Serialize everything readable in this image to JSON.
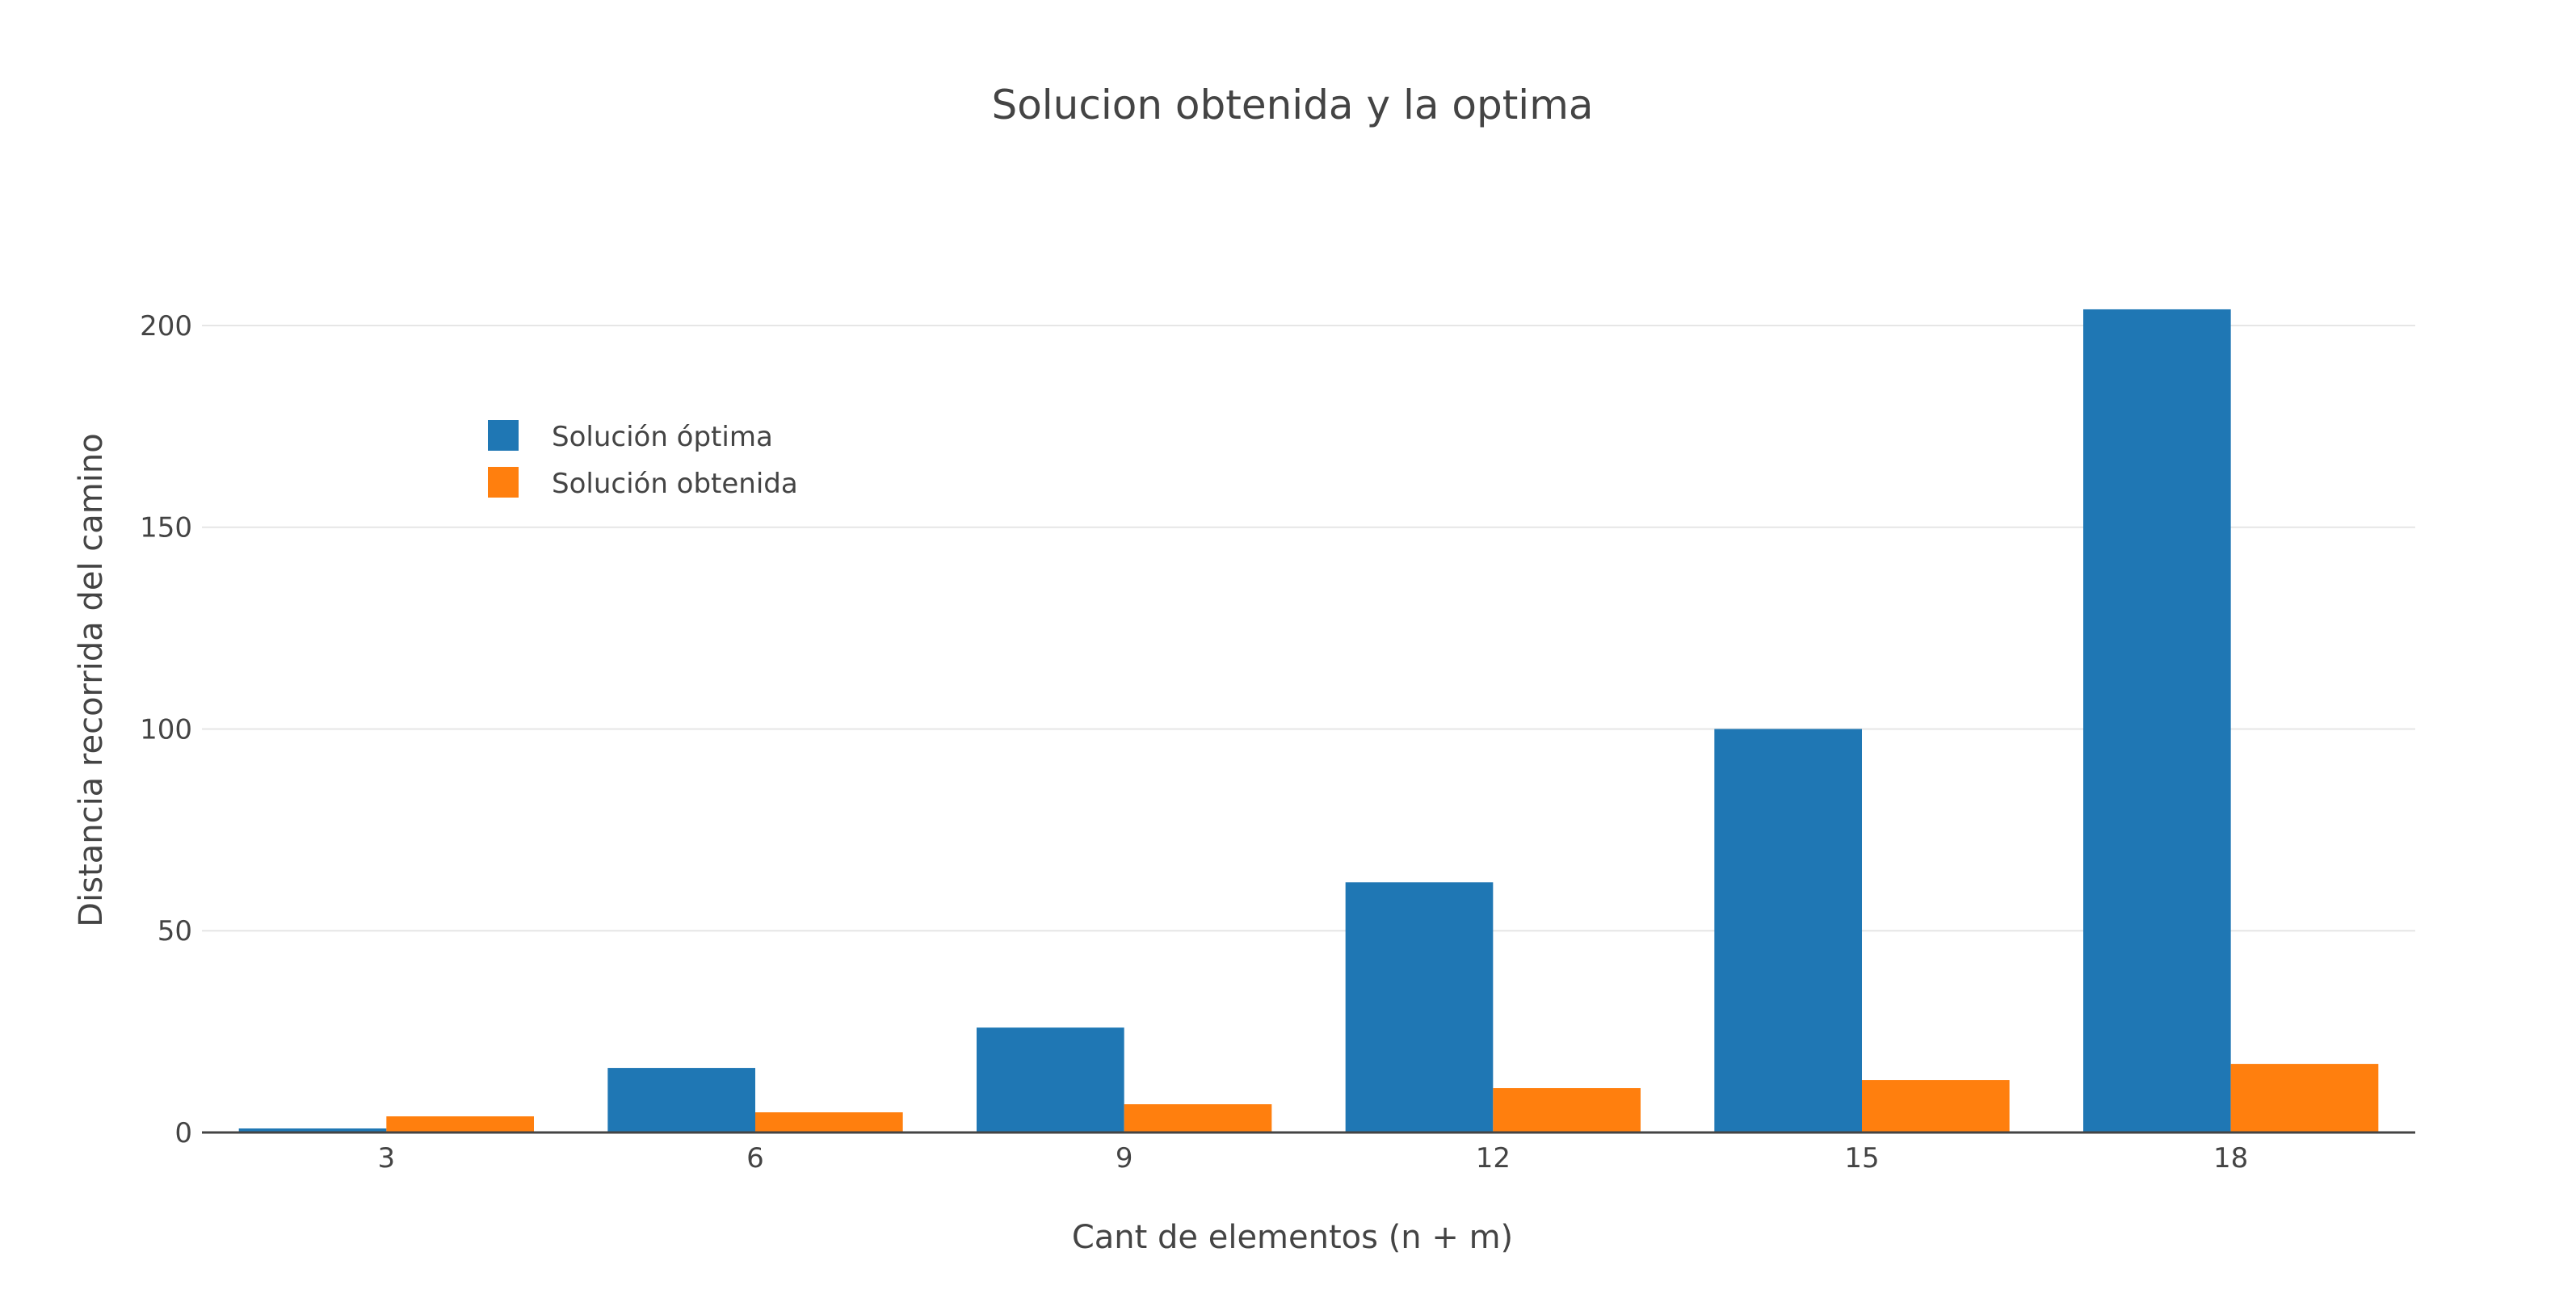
{
  "chart_data": {
    "type": "bar",
    "title": "Solucion obtenida y la optima",
    "xlabel": "Cant de elementos (n + m)",
    "ylabel": "Distancia recorrida del camino",
    "categories": [
      "3",
      "6",
      "9",
      "12",
      "15",
      "18"
    ],
    "yticks": [
      "0",
      "50",
      "100",
      "150",
      "200"
    ],
    "ylim": [
      0,
      213
    ],
    "grid": true,
    "legend_position": "top-left",
    "series": [
      {
        "name": "Solución óptima",
        "color": "#1f77b4",
        "values": [
          1,
          16,
          26,
          62,
          100,
          204
        ]
      },
      {
        "name": "Solución obtenida",
        "color": "#ff7f0e",
        "values": [
          4,
          5,
          7,
          11,
          13,
          17
        ]
      }
    ]
  }
}
